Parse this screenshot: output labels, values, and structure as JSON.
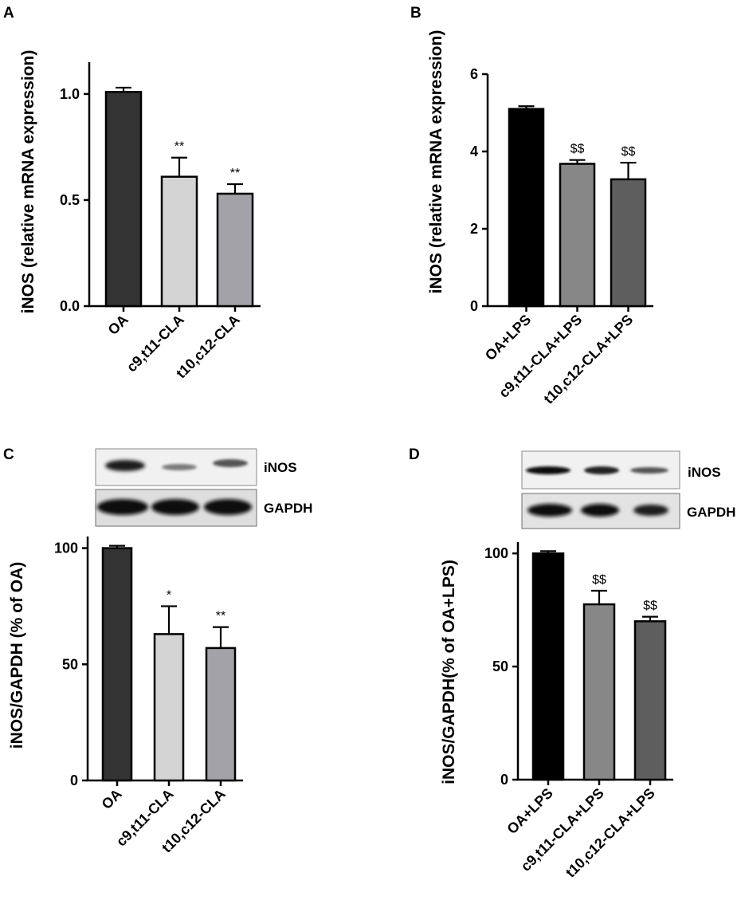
{
  "chart_data": [
    {
      "panel": "A",
      "type": "bar",
      "ylabel": "iNOS (relative mRNA expression)",
      "categories": [
        "OA",
        "c9,t11-CLA",
        "t10,c12-CLA"
      ],
      "values": [
        1.01,
        0.61,
        0.53
      ],
      "errors": [
        0.02,
        0.09,
        0.045
      ],
      "colors": [
        "#333333",
        "#d4d4d4",
        "#a2a2a8"
      ],
      "significance": [
        "",
        "**",
        "**"
      ],
      "ylim": [
        0,
        1.15
      ],
      "yticks": [
        0,
        0.5,
        1.0
      ],
      "ytick_labels": [
        "0.0",
        "0.5",
        "1.0"
      ]
    },
    {
      "panel": "B",
      "type": "bar",
      "ylabel": "iNOS (relative mRNA expression)",
      "categories": [
        "OA+LPS",
        "c9,t11-CLA+LPS",
        "t10,c12-CLA+LPS"
      ],
      "values": [
        5.1,
        3.68,
        3.28
      ],
      "errors": [
        0.07,
        0.1,
        0.43
      ],
      "colors": [
        "#000000",
        "#878787",
        "#5e5e5e"
      ],
      "significance": [
        "",
        "$$",
        "$$"
      ],
      "ylim": [
        0,
        6
      ],
      "yticks": [
        0,
        2,
        4,
        6
      ],
      "ytick_labels": [
        "0",
        "2",
        "4",
        "6"
      ]
    },
    {
      "panel": "C",
      "type": "bar",
      "ylabel": "iNOS/GAPDH (% of OA)",
      "categories": [
        "OA",
        "c9,t11-CLA",
        "t10,c12-CLA"
      ],
      "values": [
        100,
        63,
        57
      ],
      "errors": [
        1,
        12,
        9
      ],
      "colors": [
        "#333333",
        "#d4d4d4",
        "#a2a2a8"
      ],
      "significance": [
        "",
        "*",
        "**"
      ],
      "ylim": [
        0,
        105
      ],
      "yticks": [
        0,
        50,
        100
      ],
      "ytick_labels": [
        "0",
        "50",
        "100"
      ],
      "blot_labels": [
        "iNOS",
        "GAPDH"
      ]
    },
    {
      "panel": "D",
      "type": "bar",
      "ylabel": "iNOS/GAPDH(% of OA+LPS)",
      "categories": [
        "OA+LPS",
        "c9,t11-CLA+LPS",
        "t10,c12-CLA+LPS"
      ],
      "values": [
        100,
        77.5,
        70
      ],
      "errors": [
        1,
        6,
        2
      ],
      "colors": [
        "#000000",
        "#878787",
        "#5e5e5e"
      ],
      "significance": [
        "",
        "$$",
        "$$"
      ],
      "ylim": [
        0,
        105
      ],
      "yticks": [
        0,
        50,
        100
      ],
      "ytick_labels": [
        "0",
        "50",
        "100"
      ],
      "blot_labels": [
        "iNOS",
        "GAPDH"
      ]
    }
  ]
}
